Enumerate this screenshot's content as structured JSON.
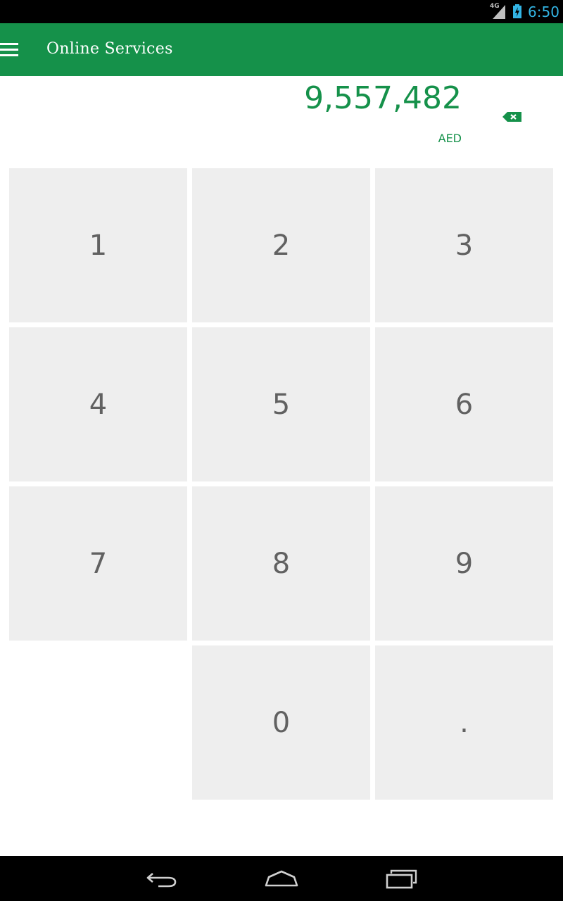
{
  "status_bar": {
    "network": "4G",
    "time": "6:50",
    "signal_icon": "signal-icon",
    "battery_icon": "battery-charging-icon"
  },
  "app_bar": {
    "title": "Online Services",
    "menu_icon": "menu-icon",
    "background_color": "#15914a"
  },
  "amount": {
    "value": "9,557,482",
    "currency": "AED",
    "accent_color": "#15914a",
    "backspace_icon": "backspace-icon"
  },
  "keypad": {
    "keys": [
      "1",
      "2",
      "3",
      "4",
      "5",
      "6",
      "7",
      "8",
      "9",
      "",
      "0",
      "."
    ]
  },
  "nav_bar": {
    "back_icon": "back-icon",
    "home_icon": "home-icon",
    "recents_icon": "recents-icon"
  }
}
